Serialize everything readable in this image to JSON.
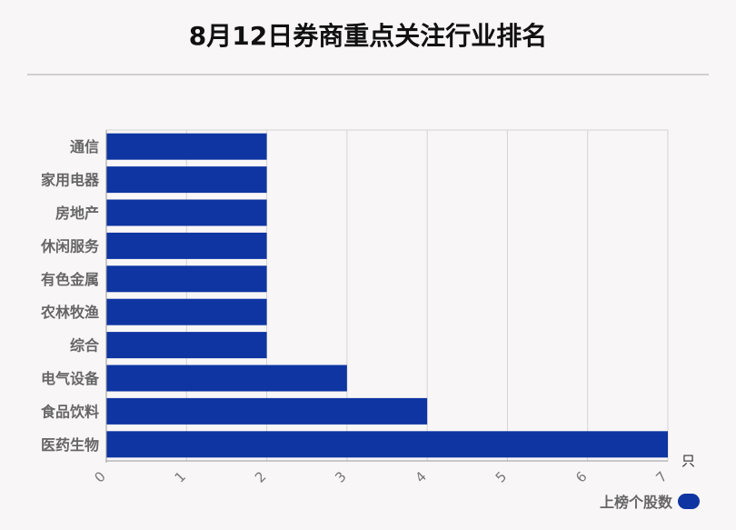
{
  "title": "8月12日券商重点关注行业排名",
  "chart_data": {
    "type": "bar",
    "orientation": "horizontal",
    "categories": [
      "通信",
      "家用电器",
      "房地产",
      "休闲服务",
      "有色金属",
      "农林牧渔",
      "综合",
      "电气设备",
      "食品饮料",
      "医药生物"
    ],
    "series": [
      {
        "name": "上榜个股数",
        "values": [
          2,
          2,
          2,
          2,
          2,
          2,
          2,
          3,
          4,
          7
        ]
      }
    ],
    "xlabel": "只",
    "ylabel": "",
    "xlim": [
      0,
      7
    ],
    "xticks": [
      "0",
      "1",
      "2",
      "3",
      "4",
      "5",
      "6",
      "7"
    ],
    "grid": true,
    "legend_position": "bottom-right"
  },
  "colors": {
    "bar": "#0e35a1",
    "grid": "#d4d4d4",
    "tick_text": "#777777",
    "category_text": "#666666"
  }
}
